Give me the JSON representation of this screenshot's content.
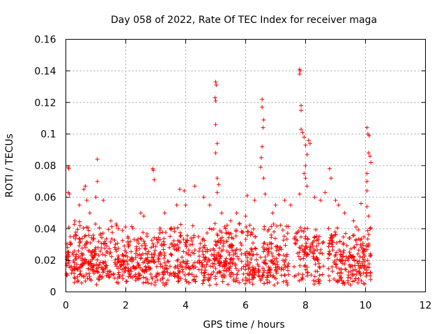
{
  "chart_data": {
    "type": "scatter",
    "title": "Day 058 of 2022, Rate Of TEC Index for receiver maga",
    "xlabel": "GPS time / hours",
    "ylabel": "ROTI / TECUs",
    "xlim": [
      0,
      12
    ],
    "ylim": [
      0,
      0.16
    ],
    "xticks": [
      "0",
      "2",
      "4",
      "6",
      "8",
      "10",
      "12"
    ],
    "yticks": [
      "0",
      "0.02",
      "0.04",
      "0.06",
      "0.08",
      "0.1",
      "0.12",
      "0.14",
      "0.16"
    ],
    "grid": true,
    "marker": "+",
    "color": "#ff0000",
    "series": [
      {
        "points": [
          [
            0.08,
            0.079
          ],
          [
            0.1,
            0.078
          ],
          [
            0.08,
            0.063
          ],
          [
            0.12,
            0.062
          ],
          [
            0.1,
            0.041
          ],
          [
            0.15,
            0.03
          ],
          [
            0.05,
            0.025
          ],
          [
            0.3,
            0.045
          ],
          [
            0.45,
            0.055
          ],
          [
            0.6,
            0.065
          ],
          [
            0.65,
            0.067
          ],
          [
            0.7,
            0.058
          ],
          [
            0.8,
            0.05
          ],
          [
            1.05,
            0.084
          ],
          [
            1.0,
            0.06
          ],
          [
            1.05,
            0.07
          ],
          [
            1.25,
            0.058
          ],
          [
            1.5,
            0.045
          ],
          [
            1.75,
            0.04
          ],
          [
            2.15,
            0.032
          ],
          [
            2.5,
            0.05
          ],
          [
            2.6,
            0.048
          ],
          [
            2.9,
            0.078
          ],
          [
            2.92,
            0.077
          ],
          [
            2.95,
            0.071
          ],
          [
            3.3,
            0.05
          ],
          [
            3.5,
            0.04
          ],
          [
            3.7,
            0.055
          ],
          [
            3.8,
            0.065
          ],
          [
            3.95,
            0.064
          ],
          [
            4.0,
            0.055
          ],
          [
            4.3,
            0.067
          ],
          [
            4.6,
            0.06
          ],
          [
            4.8,
            0.055
          ],
          [
            5.0,
            0.133
          ],
          [
            5.02,
            0.131
          ],
          [
            4.98,
            0.123
          ],
          [
            5.0,
            0.121
          ],
          [
            5.0,
            0.106
          ],
          [
            5.05,
            0.094
          ],
          [
            5.0,
            0.088
          ],
          [
            5.05,
            0.072
          ],
          [
            5.1,
            0.068
          ],
          [
            5.05,
            0.063
          ],
          [
            5.2,
            0.05
          ],
          [
            5.5,
            0.045
          ],
          [
            5.7,
            0.05
          ],
          [
            6.0,
            0.048
          ],
          [
            6.05,
            0.061
          ],
          [
            6.3,
            0.058
          ],
          [
            6.5,
            0.079
          ],
          [
            6.52,
            0.085
          ],
          [
            6.55,
            0.092
          ],
          [
            6.58,
            0.104
          ],
          [
            6.6,
            0.109
          ],
          [
            6.55,
            0.117
          ],
          [
            6.55,
            0.122
          ],
          [
            6.6,
            0.072
          ],
          [
            6.65,
            0.062
          ],
          [
            6.9,
            0.05
          ],
          [
            7.0,
            0.055
          ],
          [
            7.3,
            0.058
          ],
          [
            7.5,
            0.055
          ],
          [
            7.8,
            0.141
          ],
          [
            7.82,
            0.14
          ],
          [
            7.8,
            0.138
          ],
          [
            7.85,
            0.118
          ],
          [
            7.85,
            0.115
          ],
          [
            7.85,
            0.103
          ],
          [
            7.9,
            0.101
          ],
          [
            7.95,
            0.098
          ],
          [
            8.0,
            0.093
          ],
          [
            8.05,
            0.087
          ],
          [
            8.0,
            0.08
          ],
          [
            7.95,
            0.075
          ],
          [
            8.0,
            0.072
          ],
          [
            8.05,
            0.067
          ],
          [
            8.1,
            0.096
          ],
          [
            8.15,
            0.094
          ],
          [
            7.8,
            0.062
          ],
          [
            8.3,
            0.06
          ],
          [
            8.5,
            0.058
          ],
          [
            8.65,
            0.063
          ],
          [
            8.8,
            0.078
          ],
          [
            8.85,
            0.072
          ],
          [
            9.0,
            0.058
          ],
          [
            9.1,
            0.055
          ],
          [
            9.3,
            0.05
          ],
          [
            9.6,
            0.045
          ],
          [
            9.85,
            0.056
          ],
          [
            10.05,
            0.104
          ],
          [
            10.08,
            0.1
          ],
          [
            10.12,
            0.099
          ],
          [
            10.1,
            0.088
          ],
          [
            10.15,
            0.086
          ],
          [
            10.18,
            0.082
          ],
          [
            10.05,
            0.075
          ],
          [
            10.05,
            0.07
          ],
          [
            10.05,
            0.064
          ],
          [
            10.05,
            0.054
          ],
          [
            10.1,
            0.048
          ],
          [
            10.15,
            0.04
          ]
        ],
        "band": {
          "x_range": [
            0.0,
            10.2
          ],
          "y_range": [
            0.004,
            0.045
          ],
          "count": 1400,
          "seed": 58
        }
      }
    ]
  }
}
